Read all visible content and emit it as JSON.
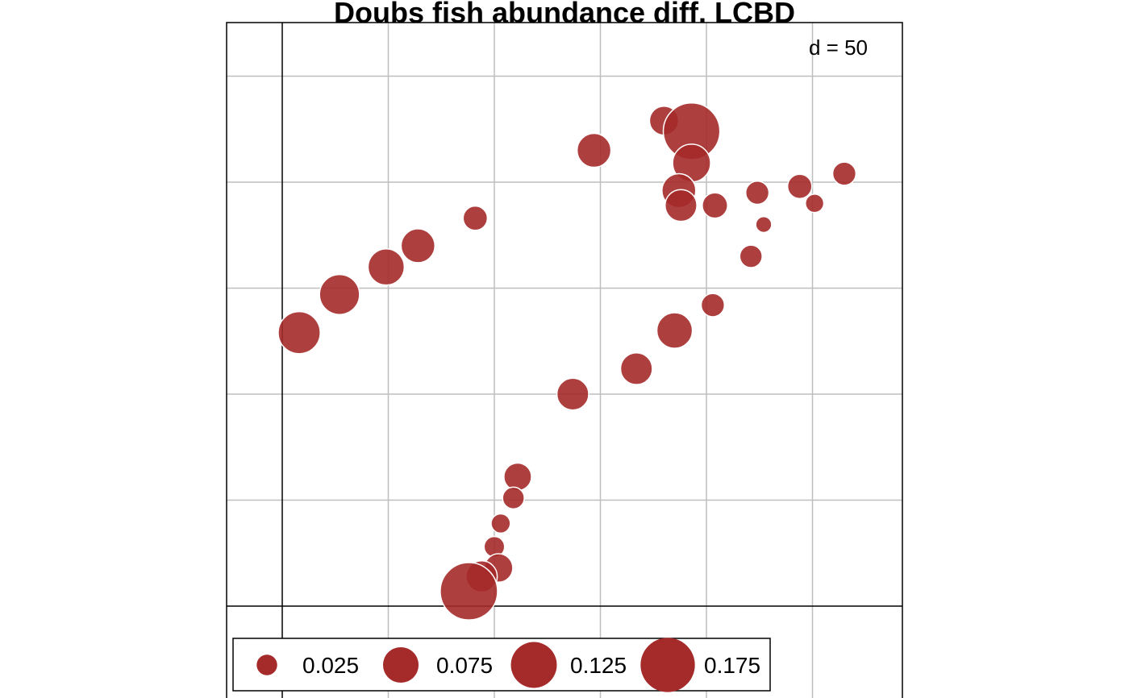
{
  "chart_data": {
    "type": "scatter",
    "title": "Doubs fish abundance diff. LCBD",
    "grid_label": "d = 50",
    "grid": true,
    "xlim": [
      -10,
      300
    ],
    "ylim": [
      -10,
      270
    ],
    "bubble_color": "#a52a2a",
    "bubble_border": "#ffffff",
    "grid_color": "#bebebe",
    "points": [
      {
        "x": 8,
        "y": 129,
        "value": 0.105
      },
      {
        "x": 27,
        "y": 147,
        "value": 0.095
      },
      {
        "x": 49,
        "y": 160,
        "value": 0.078
      },
      {
        "x": 64,
        "y": 170,
        "value": 0.068
      },
      {
        "x": 91,
        "y": 183,
        "value": 0.035
      },
      {
        "x": 147,
        "y": 215,
        "value": 0.068
      },
      {
        "x": 180,
        "y": 229,
        "value": 0.05
      },
      {
        "x": 193,
        "y": 224,
        "value": 0.19
      },
      {
        "x": 193,
        "y": 209,
        "value": 0.085
      },
      {
        "x": 187,
        "y": 196,
        "value": 0.068
      },
      {
        "x": 188,
        "y": 189,
        "value": 0.06
      },
      {
        "x": 204,
        "y": 189,
        "value": 0.038
      },
      {
        "x": 224,
        "y": 195,
        "value": 0.032
      },
      {
        "x": 244,
        "y": 198,
        "value": 0.035
      },
      {
        "x": 251,
        "y": 190,
        "value": 0.02
      },
      {
        "x": 265,
        "y": 204,
        "value": 0.032
      },
      {
        "x": 227,
        "y": 180,
        "value": 0.015
      },
      {
        "x": 221,
        "y": 165,
        "value": 0.03
      },
      {
        "x": 203,
        "y": 142,
        "value": 0.032
      },
      {
        "x": 185,
        "y": 130,
        "value": 0.075
      },
      {
        "x": 167,
        "y": 112,
        "value": 0.06
      },
      {
        "x": 137,
        "y": 100,
        "value": 0.06
      },
      {
        "x": 111,
        "y": 61,
        "value": 0.045
      },
      {
        "x": 109,
        "y": 51,
        "value": 0.028
      },
      {
        "x": 103,
        "y": 39,
        "value": 0.022
      },
      {
        "x": 100,
        "y": 28,
        "value": 0.025
      },
      {
        "x": 102,
        "y": 18,
        "value": 0.048
      },
      {
        "x": 94,
        "y": 14,
        "value": 0.058
      },
      {
        "x": 88,
        "y": 7,
        "value": 0.195
      }
    ],
    "legend": {
      "position": "bottom-left",
      "entries": [
        {
          "label": "0.025",
          "value": 0.025
        },
        {
          "label": "0.075",
          "value": 0.075
        },
        {
          "label": "0.125",
          "value": 0.125
        },
        {
          "label": "0.175",
          "value": 0.175
        }
      ]
    }
  }
}
